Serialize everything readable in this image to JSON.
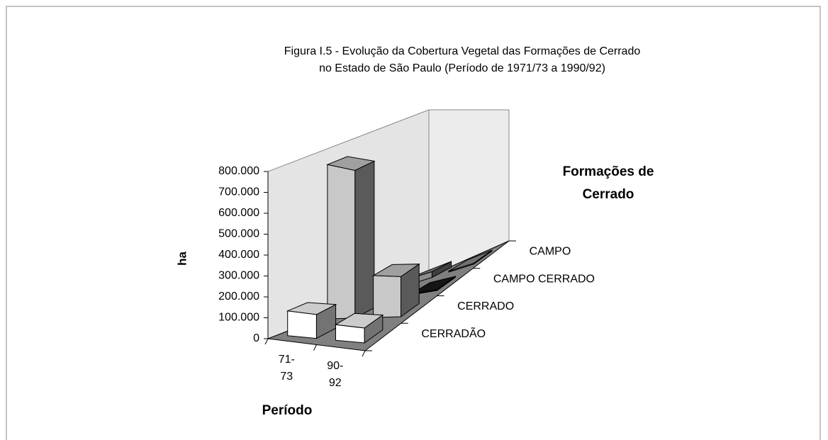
{
  "chart_data": {
    "type": "bar3d",
    "title": [
      "Figura I.5 - Evolução da Cobertura Vegetal das Formações de Cerrado",
      "no Estado de São Paulo (Período de 1971/73 a 1990/92)"
    ],
    "ylabel": "ha",
    "xlabel": "Período",
    "zlabel": [
      "Formações de",
      "Cerrado"
    ],
    "categories": [
      "71-73",
      "90-92"
    ],
    "series": [
      {
        "name": "CERRADÃO",
        "color": "#ffffff",
        "values": [
          120000,
          80000
        ]
      },
      {
        "name": "CERRADO",
        "color": "#c8c8c8",
        "values": [
          750000,
          220000
        ]
      },
      {
        "name": "CAMPO CERRADO",
        "color": "#1a1a1a",
        "values": [
          50000,
          5000
        ]
      },
      {
        "name": "CAMPO",
        "color": "#8c8c8c",
        "values": [
          30000,
          5000
        ]
      }
    ],
    "ylim": [
      0,
      800000
    ],
    "yticks": [
      0,
      {
        "value": 100000,
        "label": "100.000"
      },
      {
        "value": 200000,
        "label": "200.000"
      },
      {
        "value": 300000,
        "label": "300.000"
      },
      {
        "value": 400000,
        "label": "400.000"
      },
      {
        "value": 500000,
        "label": "500.000"
      },
      {
        "value": 600000,
        "label": "600.000"
      },
      {
        "value": 700000,
        "label": "700.000"
      },
      {
        "value": 800000,
        "label": "800.000"
      }
    ]
  }
}
